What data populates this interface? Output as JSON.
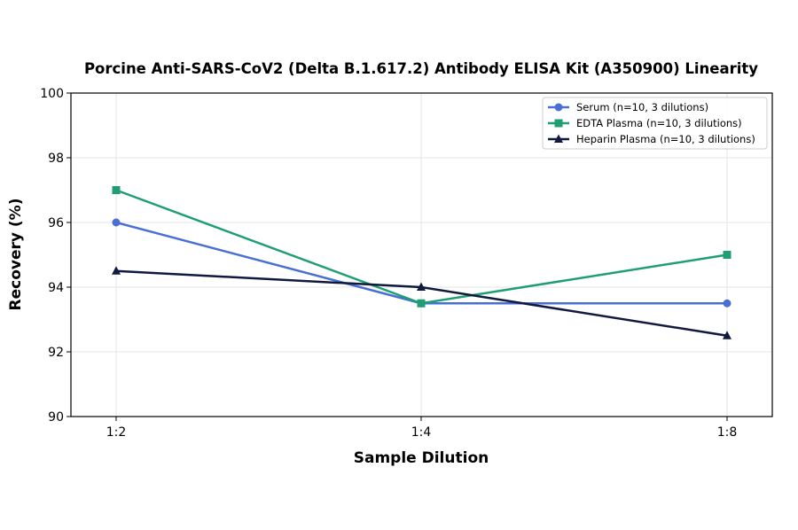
{
  "chart_data": {
    "type": "line",
    "title": "Porcine Anti-SARS-CoV2 (Delta B.1.617.2) Antibody ELISA Kit (A350900) Linearity",
    "xlabel": "Sample Dilution",
    "ylabel": "Recovery (%)",
    "categories": [
      "1:2",
      "1:4",
      "1:8"
    ],
    "ylim": [
      90,
      100
    ],
    "yticks": [
      "90",
      "92",
      "94",
      "96",
      "98",
      "100"
    ],
    "grid": true,
    "legend_position": "top-right",
    "series": [
      {
        "name": "Serum (n=10, 3 dilutions)",
        "values": [
          96.0,
          93.5,
          93.5
        ],
        "color": "#4a6fd4",
        "marker": "circle"
      },
      {
        "name": "EDTA Plasma (n=10, 3 dilutions)",
        "values": [
          97.0,
          93.5,
          95.0
        ],
        "color": "#1f9e74",
        "marker": "square"
      },
      {
        "name": "Heparin Plasma (n=10, 3 dilutions)",
        "values": [
          94.5,
          94.0,
          92.5
        ],
        "color": "#0f1a3e",
        "marker": "triangle"
      }
    ]
  }
}
